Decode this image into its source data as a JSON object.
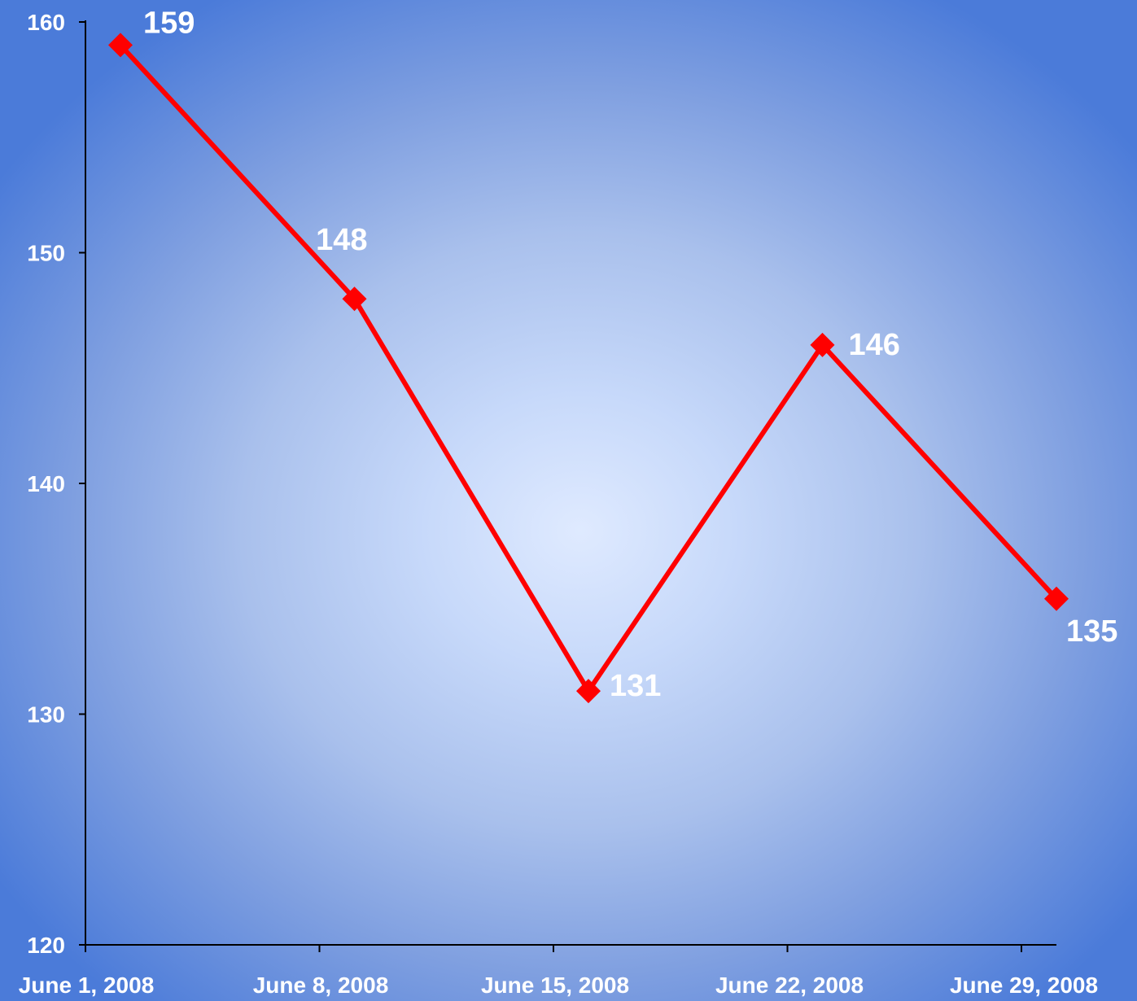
{
  "chart_data": {
    "type": "line",
    "title": "",
    "xlabel": "",
    "ylabel": "",
    "categories": [
      "June 1, 2008",
      "June 8, 2008",
      "June 15, 2008",
      "June 22, 2008",
      "June 29, 2008"
    ],
    "x": [
      "June 1, 2008",
      "June 8, 2008",
      "June 15, 2008",
      "June 22, 2008",
      "June 29, 2008"
    ],
    "series": [
      {
        "values": [
          159,
          148,
          131,
          146,
          135
        ],
        "data_labels": [
          "159",
          "148",
          "131",
          "146",
          "135"
        ],
        "color": "#ff0000",
        "marker": "diamond"
      }
    ],
    "ylim": [
      120,
      160
    ],
    "yticks": [
      120,
      130,
      140,
      150,
      160
    ],
    "ytick_labels": [
      "120",
      "130",
      "140",
      "150",
      "160"
    ],
    "grid": false,
    "legend": "none",
    "colors": {
      "line": "#ff0000",
      "axis": "#000000",
      "text": "#ffffff",
      "background_edge": "#3f74d6",
      "background_center": "#dfeaff"
    }
  }
}
